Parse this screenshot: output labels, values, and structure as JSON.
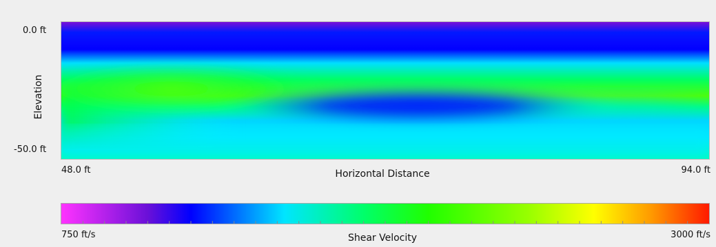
{
  "chart_data": {
    "type": "heatmap",
    "title": "",
    "xlabel": "Horizontal Distance",
    "ylabel": "Elevation",
    "x_tick_labels": [
      "48.0 ft",
      "94.0 ft"
    ],
    "y_tick_labels": [
      "0.0 ft",
      "-50.0 ft"
    ],
    "xlim": [
      48.0,
      94.0
    ],
    "ylim": [
      -50.0,
      0.0
    ],
    "colorbar": {
      "label": "Shear Velocity",
      "min_label": "750 ft/s",
      "max_label": "3000 ft/s",
      "range": [
        750,
        3000
      ],
      "stops": [
        {
          "value": 750,
          "color": "#ff33ff"
        },
        {
          "value": 1050,
          "color": "#6a10d8"
        },
        {
          "value": 1200,
          "color": "#0000ff"
        },
        {
          "value": 1525,
          "color": "#00e5ff"
        },
        {
          "value": 1800,
          "color": "#00ff6a"
        },
        {
          "value": 2025,
          "color": "#20ff00"
        },
        {
          "value": 2375,
          "color": "#99ff00"
        },
        {
          "value": 2600,
          "color": "#ffff00"
        },
        {
          "value": 2800,
          "color": "#ff9900"
        },
        {
          "value": 3000,
          "color": "#ff1a00"
        }
      ]
    },
    "profile_summary": [
      {
        "x_range": [
          48.0,
          94.0
        ],
        "elevation_range": [
          0.0,
          -8.0
        ],
        "velocity": 1150
      },
      {
        "x_range": [
          48.0,
          94.0
        ],
        "elevation_range": [
          -8.0,
          -22.0
        ],
        "velocity": 1850
      },
      {
        "x_range": [
          48.0,
          65.0
        ],
        "elevation_range": [
          -22.0,
          -38.0
        ],
        "velocity": 1800
      },
      {
        "x_range": [
          65.0,
          84.0
        ],
        "elevation_range": [
          -24.0,
          -36.0
        ],
        "velocity": 1250
      },
      {
        "x_range": [
          48.0,
          94.0
        ],
        "elevation_range": [
          -38.0,
          -50.0
        ],
        "velocity": 1600
      }
    ]
  }
}
